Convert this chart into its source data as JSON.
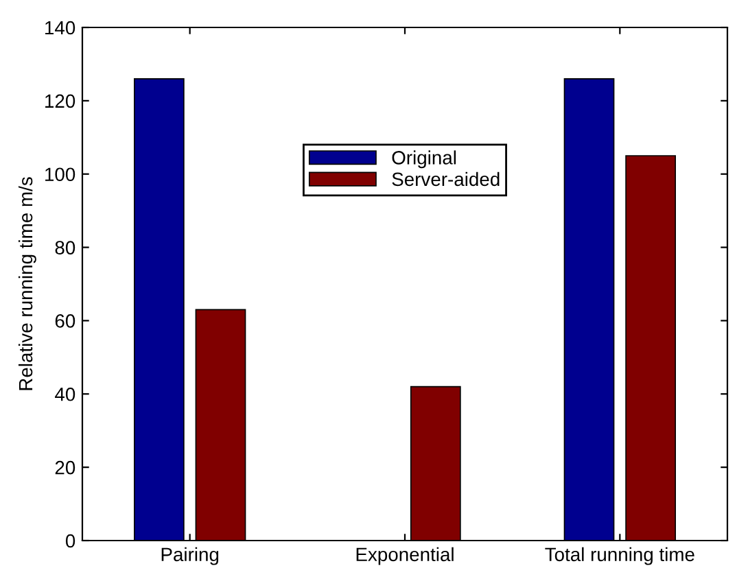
{
  "chart_data": {
    "type": "bar",
    "ylabel": "Relative running time m/s",
    "categories": [
      "Pairing",
      "Exponential",
      "Total running time"
    ],
    "series": [
      {
        "name": "Original",
        "color": "#00008f",
        "values": [
          126,
          null,
          126
        ]
      },
      {
        "name": "Server-aided",
        "color": "#800000",
        "values": [
          63,
          42,
          105
        ]
      }
    ],
    "ylim": [
      0,
      140
    ],
    "yticks": [
      0,
      20,
      40,
      60,
      80,
      100,
      120,
      140
    ],
    "grid": false,
    "legend": "top"
  }
}
